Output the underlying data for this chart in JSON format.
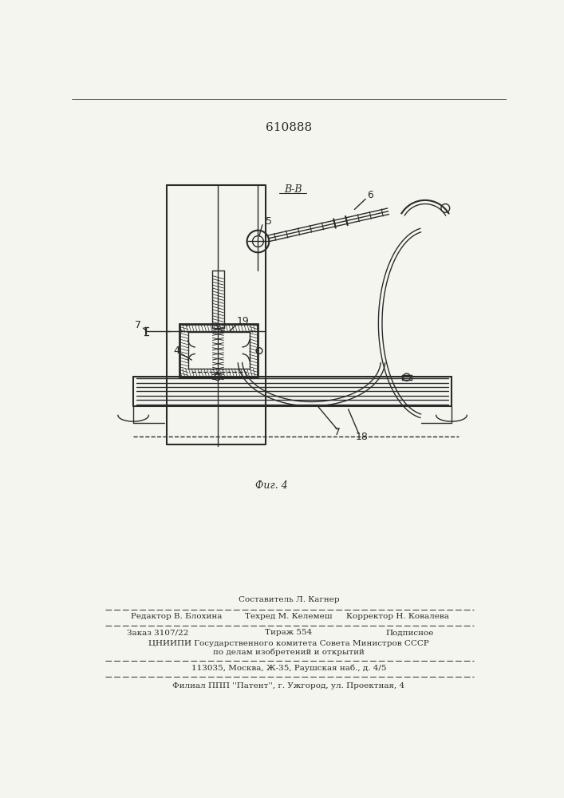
{
  "patent_number": "610888",
  "figure_label": "Фиг. 4",
  "section_label": "В-В",
  "bg_color": "#f5f5f0",
  "line_color": "#2a2a2a",
  "compositor_line": "Составитель Л. Кагнер",
  "editor_line1": "Редактор В. Блохина",
  "editor_line2": "Техред М. Келемеш",
  "editor_line3": "Корректор Н. Ковалева",
  "order_line1": "Заказ 3107/22",
  "order_line2": "Тираж 554",
  "order_line3": "Подписное",
  "institute_line1": "ЦНИИПИ Государственного комитета Совета Министров СССР",
  "institute_line2": "по делам изобретений и открытий",
  "address_line": "113035, Москва, Ж-35, Раушская наб., д. 4/5",
  "branch_line": "Филиал ППП ''Патент'', г. Ужгород, ул. Проектная, 4"
}
